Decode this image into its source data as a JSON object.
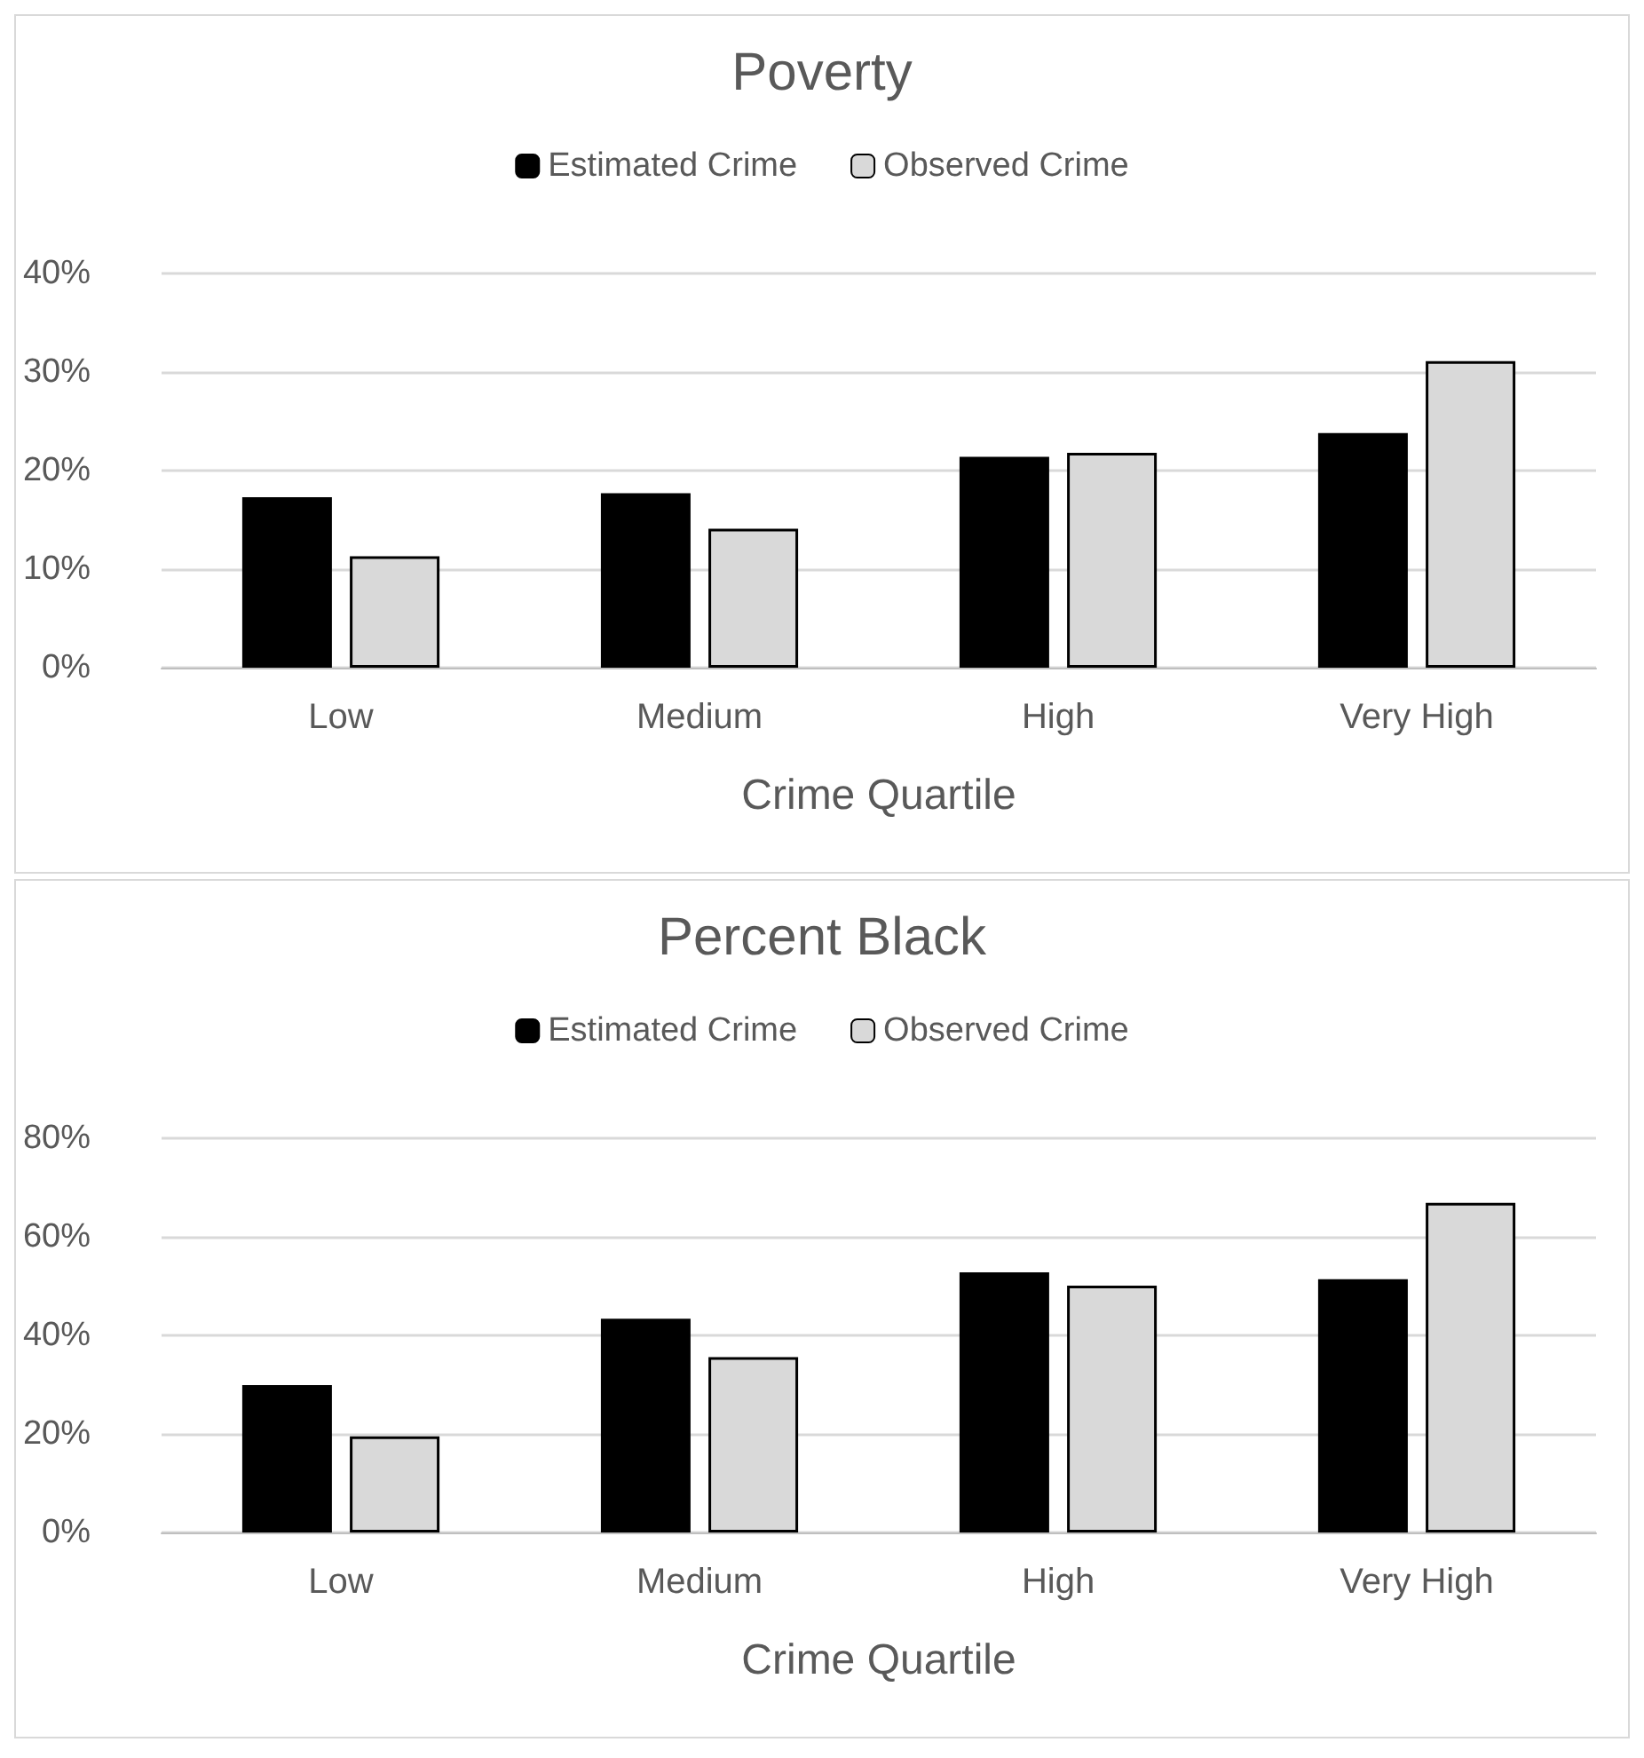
{
  "chart_data": [
    {
      "type": "bar",
      "title": "Poverty",
      "xlabel": "Crime Quartile",
      "categories": [
        "Low",
        "Medium",
        "High",
        "Very High"
      ],
      "series": [
        {
          "name": "Estimated Crime",
          "color": "#000000",
          "values": [
            17.3,
            17.7,
            21.4,
            23.8
          ]
        },
        {
          "name": "Observed Crime",
          "color": "#d9d9d9",
          "values": [
            11.3,
            14.1,
            21.8,
            31.1
          ]
        }
      ],
      "ylim": [
        0,
        40
      ],
      "yticks": [
        {
          "value": 0,
          "label": "0%"
        },
        {
          "value": 10,
          "label": "10%"
        },
        {
          "value": 20,
          "label": "20%"
        },
        {
          "value": 30,
          "label": "30%"
        },
        {
          "value": 40,
          "label": "40%"
        }
      ],
      "grid": "y",
      "legend": "top"
    },
    {
      "type": "bar",
      "title": "Percent Black",
      "xlabel": "Crime Quartile",
      "categories": [
        "Low",
        "Medium",
        "High",
        "Very High"
      ],
      "series": [
        {
          "name": "Estimated Crime",
          "color": "#000000",
          "values": [
            29.9,
            43.4,
            52.8,
            51.4
          ]
        },
        {
          "name": "Observed Crime",
          "color": "#d9d9d9",
          "values": [
            19.5,
            35.6,
            50.1,
            66.9
          ]
        }
      ],
      "ylim": [
        0,
        80
      ],
      "yticks": [
        {
          "value": 0,
          "label": "0%"
        },
        {
          "value": 20,
          "label": "20%"
        },
        {
          "value": 40,
          "label": "40%"
        },
        {
          "value": 60,
          "label": "60%"
        },
        {
          "value": 80,
          "label": "80%"
        }
      ],
      "grid": "y",
      "legend": "top"
    }
  ]
}
